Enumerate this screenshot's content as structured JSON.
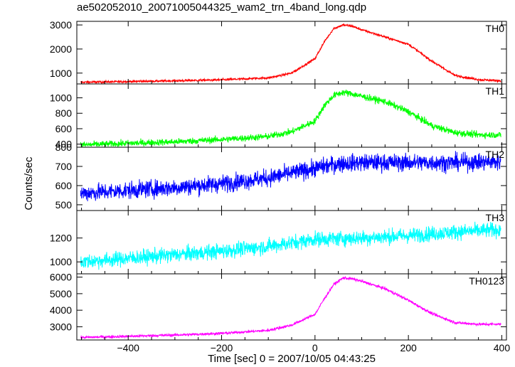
{
  "chart_data": {
    "type": "line",
    "title": "ae502052010_20071005044325_wam2_trn_4band_long.qdp",
    "xlabel": "Time [sec] 0 = 2007/10/05 04:43:25",
    "ylabel": "Counts/sec",
    "xlim": [
      -510,
      410
    ],
    "xticks": [
      -400,
      -200,
      0,
      200,
      400
    ],
    "grid": false,
    "panels": [
      {
        "name": "TH0",
        "color": "#ff0000",
        "ylim": [
          550,
          3150
        ],
        "yticks": [
          1000,
          2000,
          3000
        ],
        "noise": 35,
        "series": {
          "x": [
            -500,
            -400,
            -300,
            -200,
            -100,
            -50,
            0,
            20,
            40,
            60,
            80,
            100,
            150,
            200,
            250,
            300,
            350,
            400
          ],
          "y": [
            620,
            650,
            680,
            720,
            800,
            1000,
            1600,
            2300,
            2850,
            3000,
            2950,
            2800,
            2500,
            2200,
            1500,
            900,
            730,
            680
          ]
        }
      },
      {
        "name": "TH1",
        "color": "#00ff00",
        "ylim": [
          360,
          1180
        ],
        "yticks": [
          400,
          600,
          800,
          1000
        ],
        "noise": 30,
        "series": {
          "x": [
            -500,
            -400,
            -300,
            -200,
            -100,
            -50,
            0,
            20,
            40,
            60,
            80,
            100,
            150,
            200,
            250,
            300,
            350,
            400
          ],
          "y": [
            390,
            410,
            430,
            460,
            500,
            560,
            700,
            900,
            1030,
            1070,
            1050,
            1020,
            950,
            820,
            640,
            550,
            520,
            520
          ]
        }
      },
      {
        "name": "TH2",
        "color": "#0000ff",
        "ylim": [
          470,
          800
        ],
        "yticks": [
          500,
          600,
          700,
          800
        ],
        "noise": 32,
        "series": {
          "x": [
            -500,
            -400,
            -300,
            -200,
            -100,
            0,
            50,
            100,
            200,
            300,
            400
          ],
          "y": [
            560,
            575,
            590,
            610,
            640,
            690,
            715,
            720,
            720,
            720,
            725
          ]
        }
      },
      {
        "name": "TH3",
        "color": "#00ffff",
        "ylim": [
          900,
          1430
        ],
        "yticks": [
          1000,
          1200
        ],
        "noise": 45,
        "series": {
          "x": [
            -500,
            -400,
            -300,
            -200,
            -100,
            0,
            100,
            200,
            300,
            400
          ],
          "y": [
            1000,
            1030,
            1060,
            1090,
            1130,
            1190,
            1200,
            1220,
            1250,
            1270
          ]
        }
      },
      {
        "name": "TH0123",
        "color": "#ff00ff",
        "ylim": [
          2200,
          6200
        ],
        "yticks": [
          3000,
          4000,
          5000,
          6000
        ],
        "noise": 60,
        "series": {
          "x": [
            -500,
            -400,
            -300,
            -200,
            -100,
            -50,
            0,
            20,
            40,
            60,
            80,
            100,
            150,
            200,
            250,
            300,
            350,
            400
          ],
          "y": [
            2350,
            2420,
            2500,
            2600,
            2780,
            3100,
            3750,
            4700,
            5550,
            5950,
            5900,
            5750,
            5300,
            4600,
            3800,
            3250,
            3150,
            3150
          ]
        }
      }
    ]
  }
}
